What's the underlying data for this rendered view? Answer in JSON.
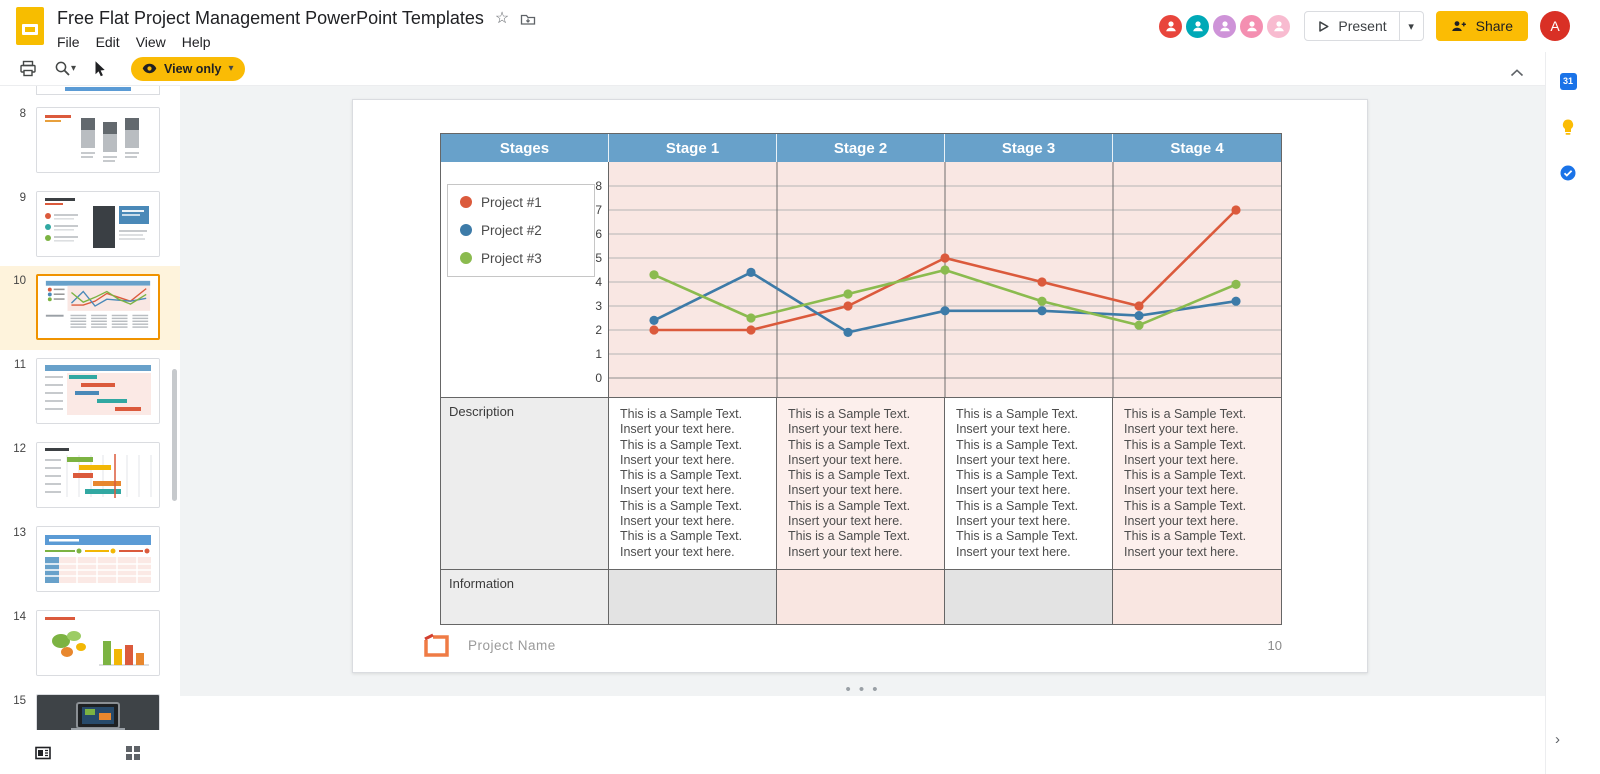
{
  "header": {
    "doc_title": "Free Flat Project Management PowerPoint Templates",
    "menus": [
      "File",
      "Edit",
      "View",
      "Help"
    ],
    "present_label": "Present",
    "share_label": "Share",
    "user_initial": "A",
    "collaborator_colors": [
      "#E8453C",
      "#00A9B7",
      "#CE93D8",
      "#F48FB1",
      "#F8BBD0"
    ]
  },
  "toolbar": {
    "view_only_label": "View only"
  },
  "filmstrip": {
    "selected_slide": "10",
    "slides": [
      {
        "number": "8"
      },
      {
        "number": "9"
      },
      {
        "number": "10"
      },
      {
        "number": "11"
      },
      {
        "number": "12"
      },
      {
        "number": "13"
      },
      {
        "number": "14"
      },
      {
        "number": "15"
      }
    ]
  },
  "slide": {
    "table_header": [
      "Stages",
      "Stage 1",
      "Stage 2",
      "Stage 3",
      "Stage 4"
    ],
    "description_label": "Description",
    "information_label": "Information",
    "sample_lines": [
      "This is a Sample Text.",
      "Insert your text here."
    ],
    "sample_pairs_per_cell": 5,
    "footer_project_name": "Project Name",
    "footer_page_number": "10"
  },
  "chart_data": {
    "type": "line",
    "title": "",
    "x": [
      1,
      2,
      3,
      4,
      5,
      6,
      7
    ],
    "series": [
      {
        "name": "Project #1",
        "color": "#DB5A3C",
        "values": [
          2.0,
          2.0,
          3.0,
          5.0,
          4.0,
          3.0,
          7.0
        ]
      },
      {
        "name": "Project #2",
        "color": "#3D7BA8",
        "values": [
          2.4,
          4.4,
          1.9,
          2.8,
          2.8,
          2.6,
          3.2
        ]
      },
      {
        "name": "Project #3",
        "color": "#8BBB4F",
        "values": [
          4.3,
          2.5,
          3.5,
          4.5,
          3.2,
          2.2,
          3.9
        ]
      }
    ],
    "ylim": [
      0,
      8
    ],
    "yticks": [
      0,
      1,
      2,
      3,
      4,
      5,
      6,
      7,
      8
    ],
    "grid": true,
    "legend_position": "left",
    "column_labels": [
      "Stage 1",
      "Stage 2",
      "Stage 3",
      "Stage 4"
    ]
  },
  "side_panel": {
    "calendar_day": "31"
  }
}
